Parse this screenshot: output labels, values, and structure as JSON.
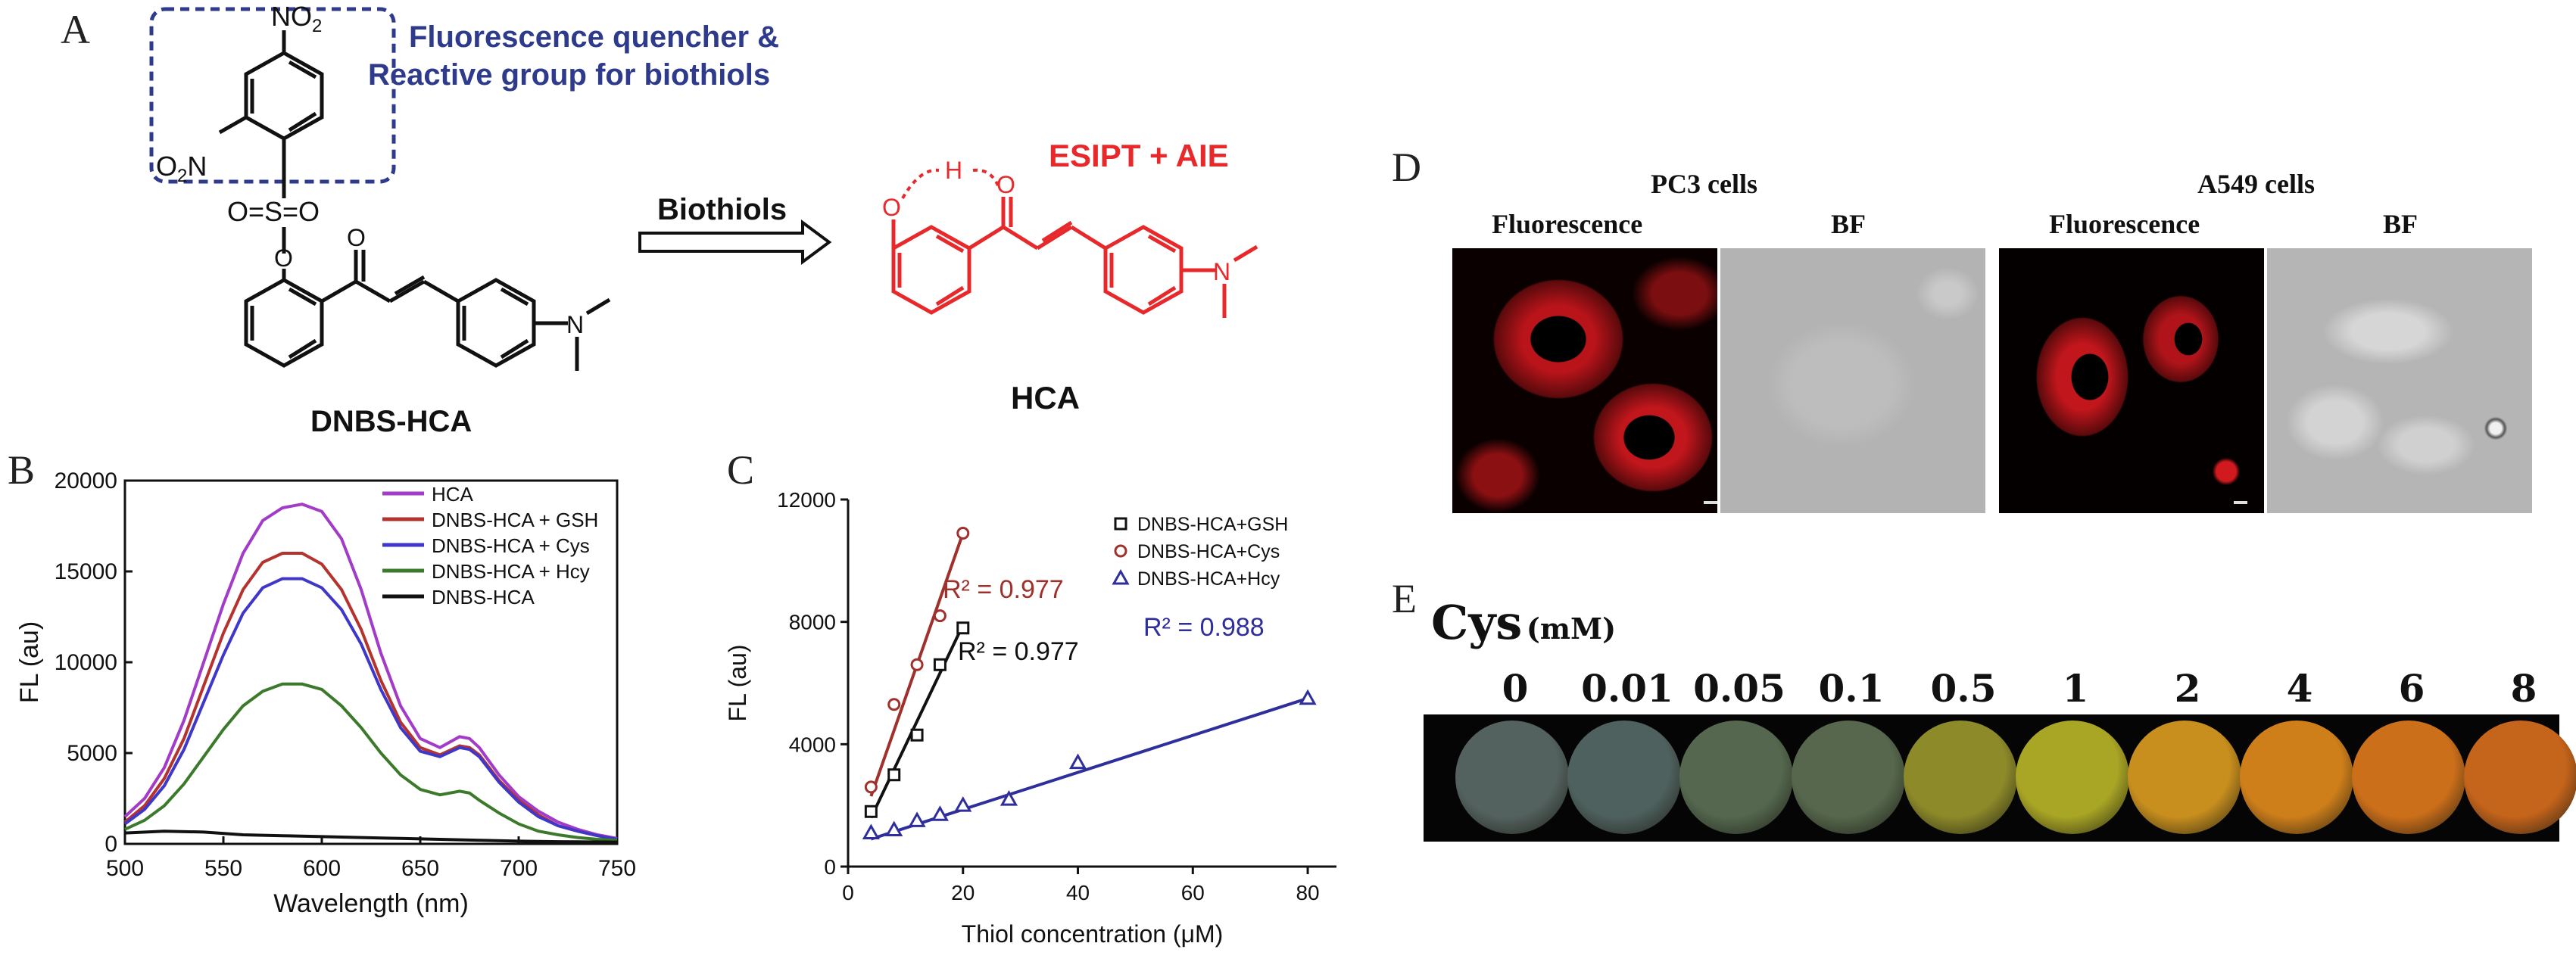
{
  "panels": {
    "a": "A",
    "b": "B",
    "c": "C",
    "d": "D",
    "e": "E"
  },
  "panel_a": {
    "quencher_line1": "Fluorescence quencher &",
    "quencher_line2": "Reactive group for biothiols",
    "arrow_label": "Biothiols",
    "product_note": "ESIPT + AIE",
    "probe_name": "DNBS-HCA",
    "product_name": "HCA",
    "nitro_top": "NO",
    "nitro_top_sub": "2",
    "nitro_left": "O",
    "nitro_left_sub": "2",
    "nitro_left_tail": "N",
    "sulfonyl": "O=S=O",
    "colors": {
      "quencher_text": "#2e3a8c",
      "box": "#2e3a8c",
      "product": "#e8292b"
    }
  },
  "chart_data": [
    {
      "panel": "B",
      "type": "line",
      "xlabel": "Wavelength (nm)",
      "ylabel": "FL (au)",
      "xlim": [
        500,
        750
      ],
      "ylim": [
        0,
        20000
      ],
      "xticks": [
        "500",
        "550",
        "600",
        "650",
        "700",
        "750"
      ],
      "yticks": [
        "0",
        "5000",
        "10000",
        "15000",
        "20000"
      ],
      "legend_position": "top-right",
      "series": [
        {
          "name": "HCA",
          "color": "#a23bc7",
          "x": [
            500,
            510,
            520,
            530,
            540,
            550,
            560,
            570,
            580,
            590,
            600,
            610,
            620,
            630,
            640,
            650,
            660,
            670,
            675,
            680,
            690,
            700,
            710,
            720,
            730,
            740,
            750
          ],
          "y": [
            1500,
            2500,
            4200,
            6800,
            10000,
            13200,
            16000,
            17800,
            18500,
            18700,
            18300,
            16800,
            14000,
            10500,
            7600,
            5800,
            5300,
            5900,
            5800,
            5300,
            3800,
            2600,
            1800,
            1200,
            800,
            500,
            300
          ]
        },
        {
          "name": "DNBS-HCA + GSH",
          "color": "#b5332e",
          "x": [
            500,
            510,
            520,
            530,
            540,
            550,
            560,
            570,
            580,
            590,
            600,
            610,
            620,
            630,
            640,
            650,
            660,
            670,
            675,
            680,
            690,
            700,
            710,
            720,
            730,
            740,
            750
          ],
          "y": [
            1200,
            2100,
            3600,
            5800,
            8700,
            11600,
            14000,
            15500,
            16000,
            16000,
            15400,
            14000,
            11800,
            9000,
            6700,
            5300,
            4900,
            5400,
            5300,
            4900,
            3500,
            2400,
            1600,
            1000,
            700,
            450,
            250
          ]
        },
        {
          "name": "DNBS-HCA + Cys",
          "color": "#3f37c9",
          "x": [
            500,
            510,
            520,
            530,
            540,
            550,
            560,
            570,
            580,
            590,
            600,
            610,
            620,
            630,
            640,
            650,
            660,
            670,
            675,
            680,
            690,
            700,
            710,
            720,
            730,
            740,
            750
          ],
          "y": [
            1100,
            1900,
            3200,
            5200,
            7800,
            10400,
            12700,
            14100,
            14600,
            14600,
            14100,
            12900,
            11000,
            8500,
            6400,
            5100,
            4800,
            5300,
            5200,
            4800,
            3400,
            2300,
            1500,
            1000,
            700,
            450,
            250
          ]
        },
        {
          "name": "DNBS-HCA + Hcy",
          "color": "#3b7a2a",
          "x": [
            500,
            510,
            520,
            530,
            540,
            550,
            560,
            570,
            580,
            590,
            600,
            610,
            620,
            630,
            640,
            650,
            660,
            670,
            675,
            680,
            690,
            700,
            710,
            720,
            730,
            740,
            750
          ],
          "y": [
            800,
            1300,
            2100,
            3300,
            4800,
            6300,
            7600,
            8400,
            8800,
            8800,
            8500,
            7600,
            6400,
            5000,
            3800,
            3000,
            2700,
            2900,
            2800,
            2400,
            1700,
            1100,
            700,
            500,
            350,
            250,
            200
          ]
        },
        {
          "name": "DNBS-HCA",
          "color": "#111111",
          "x": [
            500,
            520,
            540,
            560,
            580,
            600,
            620,
            640,
            660,
            680,
            700,
            720,
            750
          ],
          "y": [
            600,
            700,
            650,
            500,
            450,
            400,
            350,
            300,
            250,
            200,
            150,
            120,
            100
          ]
        }
      ]
    },
    {
      "panel": "C",
      "type": "scatter",
      "xlabel": "Thiol concentration (μM)",
      "ylabel": "FL (au)",
      "xlim": [
        0,
        85
      ],
      "ylim": [
        0,
        12000
      ],
      "xticks": [
        "0",
        "20",
        "40",
        "60",
        "80"
      ],
      "yticks": [
        "0",
        "4000",
        "8000",
        "12000"
      ],
      "legend_position": "top-right",
      "series": [
        {
          "name": "DNBS-HCA+GSH",
          "marker": "square",
          "color": "#111111",
          "x": [
            4,
            8,
            12,
            16,
            20
          ],
          "y": [
            1800,
            3000,
            4300,
            6600,
            7800
          ],
          "fit": [
            [
              4,
              1600
            ],
            [
              20,
              7900
            ]
          ],
          "r2": "R² = 0.977"
        },
        {
          "name": "DNBS-HCA+Cys",
          "marker": "circle",
          "color": "#a0302b",
          "x": [
            4,
            8,
            12,
            16,
            20
          ],
          "y": [
            2600,
            5300,
            6600,
            8200,
            10900
          ],
          "fit": [
            [
              4,
              2300
            ],
            [
              20,
              10900
            ]
          ],
          "r2": "R² = 0.977"
        },
        {
          "name": "DNBS-HCA+Hcy",
          "marker": "triangle",
          "color": "#2e2e9c",
          "x": [
            4,
            8,
            12,
            16,
            20,
            28,
            40,
            80
          ],
          "y": [
            1100,
            1200,
            1500,
            1700,
            2000,
            2200,
            3400,
            5500
          ],
          "fit": [
            [
              4,
              900
            ],
            [
              80,
              5500
            ]
          ],
          "r2": "R² = 0.988"
        }
      ]
    }
  ],
  "panel_d": {
    "groups": [
      "PC3 cells",
      "A549 cells"
    ],
    "columns": [
      "Fluorescence",
      "BF",
      "Fluorescence",
      "BF"
    ]
  },
  "panel_e": {
    "title": "Cys",
    "unit": "(mM)",
    "concentrations": [
      "0",
      "0.01",
      "0.05",
      "0.1",
      "0.5",
      "1",
      "2",
      "4",
      "6",
      "8"
    ],
    "dot_colors": [
      "#54625f",
      "#4f615e",
      "#55684f",
      "#56674d",
      "#8d8a2a",
      "#a9a525",
      "#c98f1e",
      "#cf7f1a",
      "#cc6f1a",
      "#c5641b"
    ]
  }
}
